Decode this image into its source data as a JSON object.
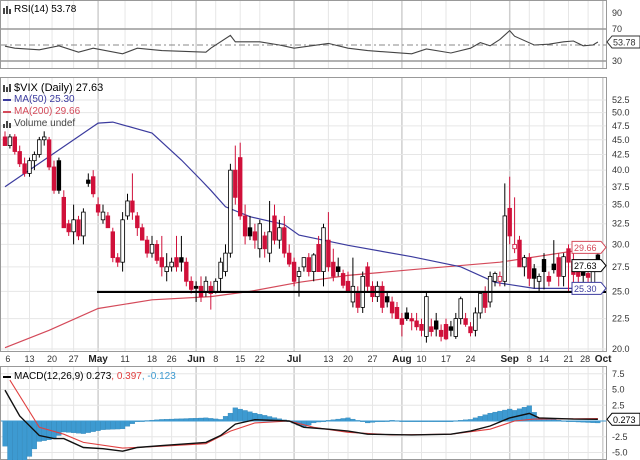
{
  "rsi_panel": {
    "title": "RSI(14) 53.78",
    "last_tag": "53.78"
  },
  "price_panel": {
    "title": "$VIX (Daily) 27.63",
    "ma50_label": "MA(50) 25.30",
    "ma200_label": "MA(200) 29.66",
    "volume_label": "Volume undef",
    "tags": {
      "ma200": "29.66",
      "close": "27.63",
      "ma50": "25.30"
    }
  },
  "macd_panel": {
    "title_main": "MACD(12,26,9) 0.273",
    "title_signal": ", 0.397",
    "title_hist": ", -0.123",
    "last_tag": "0.273"
  },
  "colors": {
    "up": "#000000",
    "down": "#d0103a",
    "ma50": "#3b3b9e",
    "ma200": "#d44a5a",
    "hist": "#3d9ad1",
    "signal": "#e04040"
  },
  "chart_data": [
    {
      "type": "candlestick",
      "title": "$VIX (Daily) 27.63",
      "scale": "log",
      "ylim": [
        20,
        52.5
      ],
      "yticks": [
        "52.5",
        "50.0",
        "47.5",
        "45.0",
        "42.5",
        "40.0",
        "37.5",
        "35.0",
        "32.5",
        "30.0",
        "27.5",
        "25.0",
        "22.5",
        "20.0"
      ],
      "xticks": [
        {
          "day": 0.6,
          "label": "6"
        },
        {
          "day": 5,
          "label": "13"
        },
        {
          "day": 9.6,
          "label": "20"
        },
        {
          "day": 14,
          "label": "27"
        },
        {
          "day": 19,
          "label": "May",
          "month": true
        },
        {
          "day": 24.5,
          "label": "11"
        },
        {
          "day": 30,
          "label": "18"
        },
        {
          "day": 34,
          "label": "26"
        },
        {
          "day": 39,
          "label": "Jun",
          "month": true
        },
        {
          "day": 43,
          "label": "8"
        },
        {
          "day": 48,
          "label": "15"
        },
        {
          "day": 52,
          "label": "22"
        },
        {
          "day": 59,
          "label": "Jul",
          "month": true
        },
        {
          "day": 66,
          "label": "13"
        },
        {
          "day": 70,
          "label": "20"
        },
        {
          "day": 75,
          "label": "27"
        },
        {
          "day": 81,
          "label": "Aug",
          "month": true
        },
        {
          "day": 85,
          "label": "10"
        },
        {
          "day": 90,
          "label": "17"
        },
        {
          "day": 95,
          "label": "24"
        },
        {
          "day": 103,
          "label": "Sep",
          "month": true
        },
        {
          "day": 107,
          "label": "8"
        },
        {
          "day": 110,
          "label": "14"
        },
        {
          "day": 115,
          "label": "21"
        },
        {
          "day": 119,
          "label": "28"
        },
        {
          "day": 122,
          "label": "Oct",
          "month": true
        }
      ],
      "ohlc": [
        [
          45.5,
          46.5,
          44,
          44
        ],
        [
          44,
          46,
          43.5,
          45.5
        ],
        [
          45.5,
          46,
          42.5,
          43
        ],
        [
          43,
          44,
          40.5,
          41
        ],
        [
          41,
          42,
          39,
          39.5
        ],
        [
          39.5,
          42,
          39,
          41.5
        ],
        [
          41.5,
          43,
          40,
          42.5
        ],
        [
          42.5,
          45.5,
          42,
          45
        ],
        [
          45,
          46.5,
          44,
          45.5
        ],
        [
          45,
          45.5,
          40,
          40.5
        ],
        [
          40.5,
          41.5,
          36.5,
          37
        ],
        [
          41.5,
          42,
          36.5,
          37
        ],
        [
          36,
          37,
          32,
          32
        ],
        [
          32.5,
          33,
          31,
          31.5
        ],
        [
          31.5,
          35,
          30,
          33
        ],
        [
          33,
          33.5,
          30.5,
          31
        ],
        [
          31,
          34.5,
          30,
          34
        ],
        [
          38.5,
          39.5,
          37.5,
          38
        ],
        [
          39,
          40,
          36,
          36.5
        ],
        [
          35,
          36,
          33.5,
          34
        ],
        [
          33,
          35,
          32.5,
          34
        ],
        [
          33.5,
          34,
          32,
          32
        ],
        [
          31.5,
          32,
          28,
          28.5
        ],
        [
          28.5,
          29,
          27.5,
          28
        ],
        [
          28,
          34,
          27,
          33
        ],
        [
          33.5,
          36.5,
          33,
          35.5
        ],
        [
          35.5,
          39.5,
          33,
          34
        ],
        [
          33.5,
          34,
          31,
          32
        ],
        [
          32,
          32.5,
          30.5,
          30.5
        ],
        [
          30.5,
          31,
          28.5,
          29
        ],
        [
          29,
          31,
          28.5,
          30
        ],
        [
          30,
          30.5,
          27.8,
          28.2
        ],
        [
          28.5,
          31,
          26.5,
          27.5
        ],
        [
          27,
          29,
          26,
          27.5
        ],
        [
          27.5,
          28.5,
          27,
          28
        ],
        [
          28.5,
          31,
          27,
          27.5
        ],
        [
          28.5,
          31,
          27,
          28
        ],
        [
          28,
          28.5,
          25.5,
          26
        ],
        [
          26,
          26.5,
          24.8,
          25.2
        ],
        [
          25.5,
          26,
          24,
          25.3
        ],
        [
          25.5,
          26.5,
          24,
          24.5
        ],
        [
          25,
          26.5,
          24.5,
          26
        ],
        [
          25.5,
          26,
          23.3,
          24.8
        ],
        [
          25,
          26.3,
          24.8,
          26
        ],
        [
          26.3,
          28.5,
          25,
          28
        ],
        [
          27,
          30,
          26.5,
          29
        ],
        [
          29,
          41,
          28.5,
          40
        ],
        [
          40,
          44,
          35,
          36
        ],
        [
          42,
          44.5,
          33,
          33.5
        ],
        [
          33.5,
          35,
          30,
          31
        ],
        [
          32,
          33.5,
          30.5,
          31
        ],
        [
          31.5,
          32.5,
          29.5,
          30.5
        ],
        [
          29.5,
          33,
          28.5,
          32.5
        ],
        [
          31,
          31.5,
          28.5,
          29.5
        ],
        [
          29,
          35.5,
          28,
          31.5
        ],
        [
          33.5,
          35,
          30,
          30.5
        ],
        [
          30.5,
          33,
          29.5,
          32
        ],
        [
          32,
          33.5,
          28.5,
          29
        ],
        [
          29,
          30,
          27.5,
          27.8
        ],
        [
          28,
          28.5,
          25.5,
          26
        ],
        [
          26.5,
          27.5,
          24.5,
          27
        ],
        [
          27.5,
          28.5,
          27,
          28.5
        ],
        [
          28.5,
          29,
          26.5,
          27
        ],
        [
          27,
          29,
          26,
          28.8
        ],
        [
          30,
          31,
          27,
          27
        ],
        [
          27,
          32.5,
          25.5,
          32
        ],
        [
          30.5,
          34,
          27,
          27.5
        ],
        [
          28,
          29.5,
          26,
          26.5
        ],
        [
          27.5,
          28.5,
          26.5,
          27
        ],
        [
          26.8,
          27.2,
          25.3,
          25.6
        ],
        [
          26,
          27,
          25,
          25
        ],
        [
          24,
          28.5,
          23.5,
          25.5
        ],
        [
          25,
          25.5,
          23,
          23.5
        ],
        [
          23.5,
          27,
          23,
          26.5
        ],
        [
          27.5,
          28,
          25,
          25.5
        ],
        [
          25.5,
          26,
          24,
          24.5
        ],
        [
          24.5,
          26,
          24,
          25.5
        ],
        [
          25.5,
          26,
          23,
          23.5
        ],
        [
          24.5,
          25,
          23.5,
          24
        ],
        [
          24,
          24.5,
          22.5,
          23
        ],
        [
          23.5,
          24,
          22.5,
          22.5
        ],
        [
          22.5,
          23,
          21,
          22
        ],
        [
          23,
          23.5,
          22.3,
          22.5
        ],
        [
          22.5,
          23,
          21.5,
          22.3
        ],
        [
          22.3,
          23,
          21.5,
          21.8
        ],
        [
          22,
          22.5,
          21,
          21.5
        ],
        [
          21,
          25,
          20.5,
          24.5
        ],
        [
          21.8,
          22.5,
          21,
          21.4
        ],
        [
          22.3,
          23,
          21,
          21.6
        ],
        [
          21.5,
          22,
          20.6,
          21
        ],
        [
          22,
          22.5,
          20.7,
          20.8
        ],
        [
          21.8,
          22.3,
          21,
          21.5
        ],
        [
          21,
          23,
          20.8,
          22.5
        ],
        [
          22.5,
          24.5,
          22,
          24.3
        ],
        [
          22.5,
          23,
          21.8,
          22
        ],
        [
          21.8,
          22.2,
          21,
          21.3
        ],
        [
          21.5,
          23.5,
          21,
          23
        ],
        [
          23,
          24.8,
          22.5,
          24.8
        ],
        [
          25,
          25.5,
          23,
          23.5
        ],
        [
          24,
          27,
          23.5,
          26.5
        ],
        [
          26,
          27,
          25.5,
          26.8
        ],
        [
          26,
          27,
          25.5,
          26.5
        ],
        [
          26,
          38,
          25.5,
          33.5
        ],
        [
          34.5,
          39,
          30,
          31
        ],
        [
          29.5,
          36,
          29,
          30
        ],
        [
          30.5,
          31,
          27.5,
          27.5
        ],
        [
          27.5,
          28.8,
          26.5,
          28.5
        ],
        [
          28.5,
          29,
          25.5,
          26.3
        ],
        [
          27.3,
          27.8,
          25.3,
          26.3
        ],
        [
          26,
          26.8,
          25,
          26.5
        ],
        [
          28.3,
          29,
          25.2,
          27
        ],
        [
          26.5,
          27,
          25.5,
          26
        ],
        [
          27.8,
          30.5,
          26.8,
          27.2
        ],
        [
          28.5,
          29,
          25.5,
          26.5
        ],
        [
          26.5,
          29,
          25.5,
          28.6
        ],
        [
          29.5,
          30,
          25,
          28
        ],
        [
          28.1,
          29.8,
          25.3,
          26.7
        ],
        [
          27,
          27.5,
          25.2,
          26.5
        ],
        [
          27,
          27.5,
          25.3,
          26.6
        ],
        [
          26.8,
          27.5,
          25.2,
          26.4
        ],
        [
          25.8,
          27.5,
          25.3,
          27
        ],
        [
          28.8,
          29.5,
          27.3,
          27.63
        ]
      ],
      "ma50": [
        [
          0,
          37.5
        ],
        [
          19,
          48.0
        ],
        [
          22,
          48.2
        ],
        [
          30,
          46.2
        ],
        [
          36,
          41.6
        ],
        [
          40,
          38.5
        ],
        [
          42,
          37.0
        ],
        [
          45,
          34.7
        ],
        [
          50,
          33.4
        ],
        [
          57,
          32.4
        ],
        [
          60,
          31.1
        ],
        [
          70,
          29.9
        ],
        [
          83,
          28.6
        ],
        [
          93,
          27.5
        ],
        [
          100,
          25.9
        ],
        [
          108,
          25.3
        ],
        [
          121,
          25.3
        ]
      ],
      "ma200": [
        [
          0,
          20.1
        ],
        [
          9,
          21.5
        ],
        [
          19,
          23.4
        ],
        [
          30,
          24.2
        ],
        [
          42,
          24.5
        ],
        [
          50,
          25.0
        ],
        [
          60,
          25.9
        ],
        [
          70,
          26.6
        ],
        [
          83,
          27.2
        ],
        [
          101,
          28.0
        ],
        [
          121,
          29.66
        ]
      ],
      "support_level": 24.95
    },
    {
      "type": "line",
      "title": "RSI(14) 53.78",
      "ylim": [
        0,
        100
      ],
      "yticks": [
        "90",
        "70",
        "30"
      ],
      "reference_lines": [
        70,
        50,
        30
      ],
      "series": [
        [
          0,
          48.5
        ],
        [
          2,
          46
        ],
        [
          7,
          44
        ],
        [
          11,
          49
        ],
        [
          15,
          41
        ],
        [
          18,
          46
        ],
        [
          24,
          39
        ],
        [
          27,
          46
        ],
        [
          32,
          43
        ],
        [
          41,
          41
        ],
        [
          42,
          46
        ],
        [
          46,
          62
        ],
        [
          47,
          54
        ],
        [
          52,
          54
        ],
        [
          56,
          50
        ],
        [
          59,
          46
        ],
        [
          66,
          52
        ],
        [
          70,
          46
        ],
        [
          74,
          43
        ],
        [
          83,
          39
        ],
        [
          86,
          45
        ],
        [
          91,
          40
        ],
        [
          95,
          46
        ],
        [
          97,
          53
        ],
        [
          99,
          49
        ],
        [
          101,
          57
        ],
        [
          103,
          68
        ],
        [
          104,
          61
        ],
        [
          108,
          50
        ],
        [
          111,
          51
        ],
        [
          114,
          54
        ],
        [
          116,
          55
        ],
        [
          118,
          49
        ],
        [
          120,
          50
        ],
        [
          121,
          53.78
        ]
      ]
    },
    {
      "type": "line",
      "title": "MACD(12,26,9)",
      "ylim": [
        -5,
        7.5
      ],
      "yticks": [
        "7.5",
        "5.0",
        "2.5",
        "-2.5",
        "-5.0"
      ],
      "macd": [
        [
          0,
          4.9
        ],
        [
          3,
          0.8
        ],
        [
          7,
          -2.3
        ],
        [
          10,
          -2.8
        ],
        [
          12,
          -2.8
        ],
        [
          16,
          -4.2
        ],
        [
          20,
          -4.4
        ],
        [
          24,
          -4.8
        ],
        [
          27,
          -4.2
        ],
        [
          32,
          -3.9
        ],
        [
          41,
          -3.4
        ],
        [
          44,
          -2.3
        ],
        [
          47,
          -0.5
        ],
        [
          51,
          0.2
        ],
        [
          58,
          0
        ],
        [
          61,
          -1.0
        ],
        [
          66,
          -1.3
        ],
        [
          70,
          -1.6
        ],
        [
          74,
          -2.1
        ],
        [
          83,
          -2.2
        ],
        [
          91,
          -2.1
        ],
        [
          95,
          -1.6
        ],
        [
          99,
          -0.8
        ],
        [
          103,
          0.5
        ],
        [
          107,
          1.2
        ],
        [
          109,
          0.5
        ],
        [
          116,
          0.3
        ],
        [
          121,
          0.273
        ]
      ],
      "signal": [
        [
          1,
          6.5
        ],
        [
          7,
          -1.0
        ],
        [
          12,
          -2.1
        ],
        [
          16,
          -3.4
        ],
        [
          24,
          -4.3
        ],
        [
          32,
          -4.0
        ],
        [
          41,
          -3.6
        ],
        [
          46,
          -1.6
        ],
        [
          51,
          -0.3
        ],
        [
          58,
          0
        ],
        [
          63,
          -1.0
        ],
        [
          70,
          -1.8
        ],
        [
          79,
          -2.2
        ],
        [
          91,
          -2.1
        ],
        [
          99,
          -1.3
        ],
        [
          104,
          0
        ],
        [
          108,
          0.3
        ],
        [
          116,
          0.35
        ],
        [
          121,
          0.397
        ]
      ],
      "histogram_last": -0.123
    }
  ]
}
